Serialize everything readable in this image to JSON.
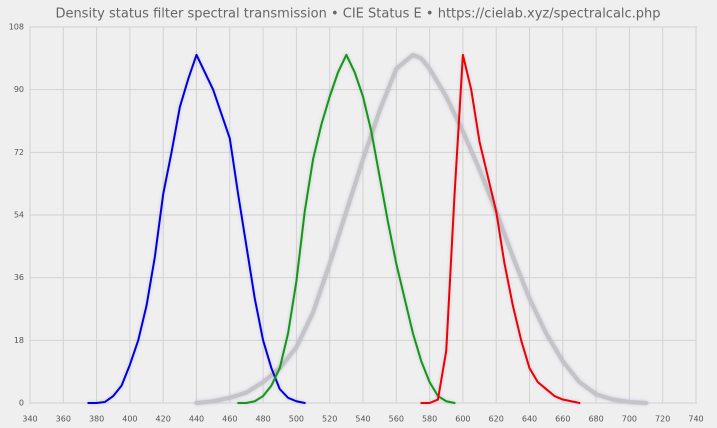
{
  "chart_data": {
    "type": "line",
    "title": "Density status filter spectral transmission  •  CIE Status E  •  https://cielab.xyz/spectralcalc.php",
    "xlim": [
      340,
      740
    ],
    "xticks": [
      340,
      360,
      380,
      400,
      420,
      440,
      460,
      480,
      500,
      520,
      540,
      560,
      580,
      600,
      620,
      640,
      660,
      680,
      700,
      720,
      740
    ],
    "ylim": [
      0,
      108
    ],
    "yticks": [
      0,
      18,
      36,
      54,
      72,
      90,
      108
    ],
    "grid": true,
    "series": [
      {
        "color": "#c4c4c4",
        "width": 4,
        "x": [
          440,
          450,
          460,
          470,
          480,
          490,
          500,
          510,
          520,
          530,
          540,
          550,
          555,
          560,
          565,
          570,
          575,
          580,
          590,
          600,
          610,
          620,
          630,
          640,
          650,
          660,
          670,
          680,
          690,
          700,
          710
        ],
        "values": [
          0,
          0.5,
          1.5,
          3,
          6,
          10,
          16,
          26,
          40,
          55,
          70,
          84,
          90,
          96,
          98,
          100,
          99,
          96,
          88,
          78,
          67,
          55,
          42,
          30,
          20,
          12,
          6,
          2.5,
          1,
          0.3,
          0
        ]
      },
      {
        "color": "#0000dd",
        "width": 2,
        "x": [
          375,
          380,
          385,
          390,
          395,
          400,
          405,
          410,
          415,
          420,
          425,
          430,
          435,
          440,
          445,
          450,
          455,
          460,
          465,
          470,
          475,
          480,
          485,
          490,
          495,
          500,
          505
        ],
        "values": [
          0,
          0,
          0.3,
          2,
          5,
          11,
          18,
          28,
          42,
          60,
          72,
          85,
          93,
          100,
          95,
          90,
          83,
          76,
          60,
          45,
          30,
          18,
          10,
          4,
          1.5,
          0.5,
          0
        ]
      },
      {
        "color": "#119911",
        "width": 2,
        "x": [
          465,
          470,
          475,
          480,
          485,
          490,
          495,
          500,
          505,
          510,
          515,
          520,
          525,
          530,
          535,
          540,
          545,
          550,
          555,
          560,
          565,
          570,
          575,
          580,
          585,
          590,
          595
        ],
        "values": [
          0,
          0,
          0.5,
          2,
          5,
          10,
          20,
          35,
          55,
          70,
          80,
          88,
          95,
          100,
          95,
          88,
          78,
          65,
          52,
          40,
          30,
          20,
          12,
          6,
          2,
          0.5,
          0
        ]
      },
      {
        "color": "#ee0000",
        "width": 2,
        "x": [
          575,
          580,
          585,
          590,
          595,
          600,
          605,
          610,
          615,
          620,
          625,
          630,
          635,
          640,
          645,
          650,
          655,
          660,
          665,
          670
        ],
        "values": [
          0,
          0,
          1,
          15,
          60,
          100,
          90,
          75,
          65,
          55,
          40,
          28,
          18,
          10,
          6,
          4,
          2,
          1,
          0.5,
          0
        ]
      }
    ]
  }
}
